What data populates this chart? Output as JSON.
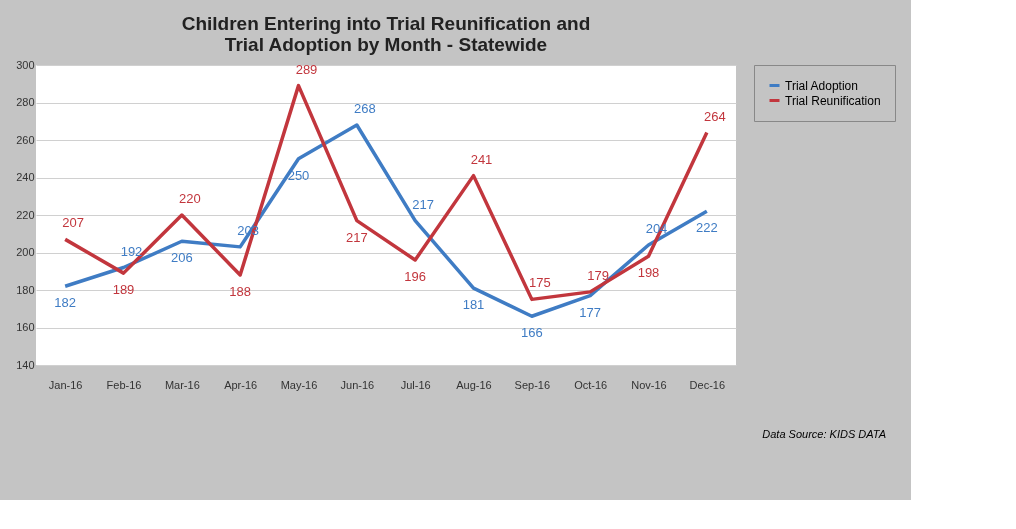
{
  "chart_data": {
    "type": "line",
    "title": [
      "Children Entering into Trial Reunification and",
      "Trial Adoption by Month - Statewide"
    ],
    "categories": [
      "Jan-16",
      "Feb-16",
      "Mar-16",
      "Apr-16",
      "May-16",
      "Jun-16",
      "Jul-16",
      "Aug-16",
      "Sep-16",
      "Oct-16",
      "Nov-16",
      "Dec-16"
    ],
    "series": [
      {
        "name": "Trial Adoption",
        "color": "#3f7cc4",
        "values": [
          182,
          192,
          206,
          203,
          250,
          268,
          217,
          181,
          166,
          177,
          204,
          222
        ]
      },
      {
        "name": "Trial Reunification",
        "color": "#c2363d",
        "values": [
          207,
          189,
          220,
          188,
          289,
          217,
          196,
          241,
          175,
          179,
          198,
          264
        ]
      }
    ],
    "ylim": [
      140,
      300
    ],
    "yticks": [
      140,
      160,
      180,
      200,
      220,
      240,
      260,
      280,
      300
    ],
    "grid": "y",
    "legend": "right",
    "data_labels": true,
    "marker": "none",
    "line_style": "solid",
    "annotations": [
      "Data Source: KIDS DATA"
    ]
  }
}
